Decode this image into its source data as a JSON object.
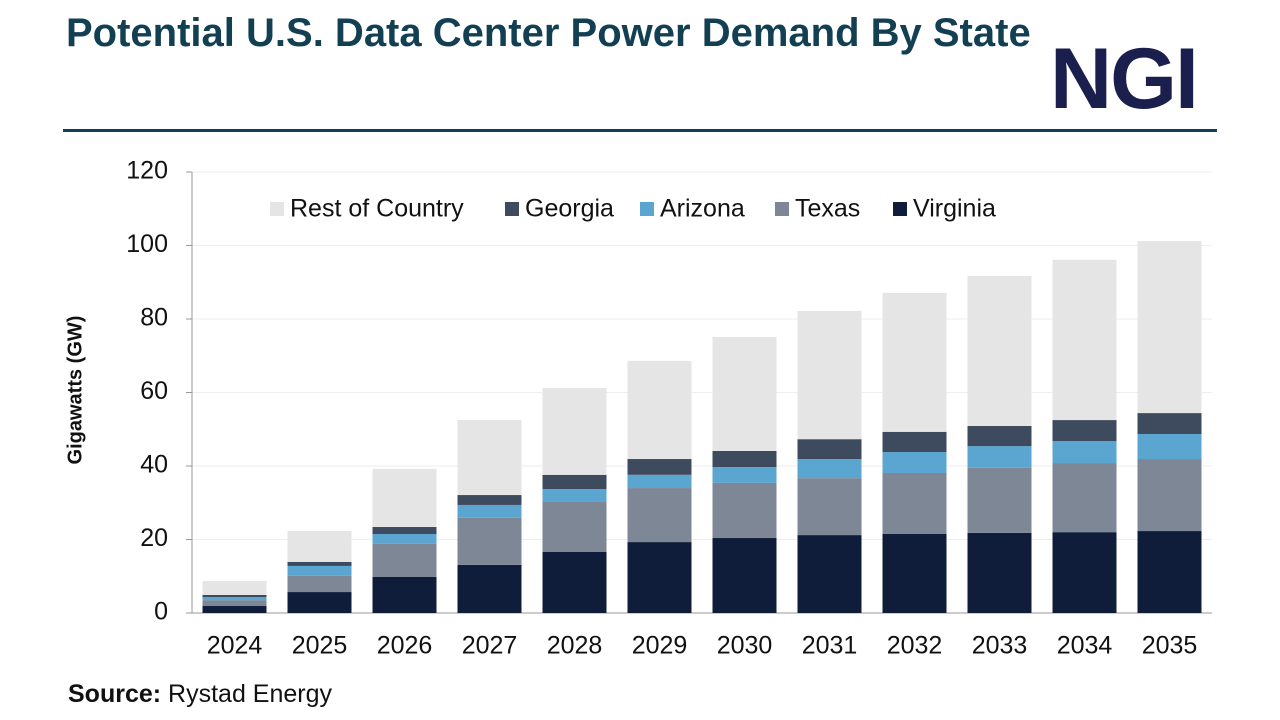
{
  "logo": "NGI",
  "chart_data": {
    "type": "stacked_bar",
    "title": "Potential U.S. Data Center Power Demand By State",
    "y_label": "Gigawatts (GW)",
    "source_label": "Source:",
    "source": "Rystad Energy",
    "categories": [
      "2024",
      "2025",
      "2026",
      "2027",
      "2028",
      "2029",
      "2030",
      "2031",
      "2032",
      "2033",
      "2034",
      "2035"
    ],
    "series": [
      {
        "name": "Virginia",
        "color": "#0f1c3a",
        "values": [
          1.9,
          5.7,
          9.8,
          13.1,
          16.6,
          19.3,
          20.4,
          21.2,
          21.5,
          21.8,
          22.0,
          22.3
        ]
      },
      {
        "name": "Texas",
        "color": "#7d8796",
        "values": [
          1.6,
          4.4,
          9.0,
          12.8,
          13.6,
          14.7,
          15.0,
          15.5,
          16.6,
          17.7,
          18.8,
          19.6
        ]
      },
      {
        "name": "Arizona",
        "color": "#5aa6d1",
        "values": [
          0.8,
          2.7,
          2.7,
          3.5,
          3.5,
          3.6,
          4.3,
          5.2,
          5.7,
          5.9,
          6.0,
          6.8
        ]
      },
      {
        "name": "Georgia",
        "color": "#3e4b5e",
        "values": [
          0.6,
          1.1,
          1.9,
          2.7,
          3.9,
          4.3,
          4.4,
          5.4,
          5.5,
          5.5,
          5.7,
          5.7
        ]
      },
      {
        "name": "Rest of Country",
        "color": "#e5e5e5",
        "values": [
          3.8,
          8.4,
          15.8,
          20.4,
          23.6,
          26.7,
          31.0,
          34.9,
          37.8,
          40.8,
          43.6,
          46.8
        ]
      }
    ],
    "ylim": [
      0,
      120
    ],
    "yticks": [
      0,
      20,
      40,
      60,
      80,
      100,
      120
    ],
    "grid": true,
    "legend": "top"
  }
}
